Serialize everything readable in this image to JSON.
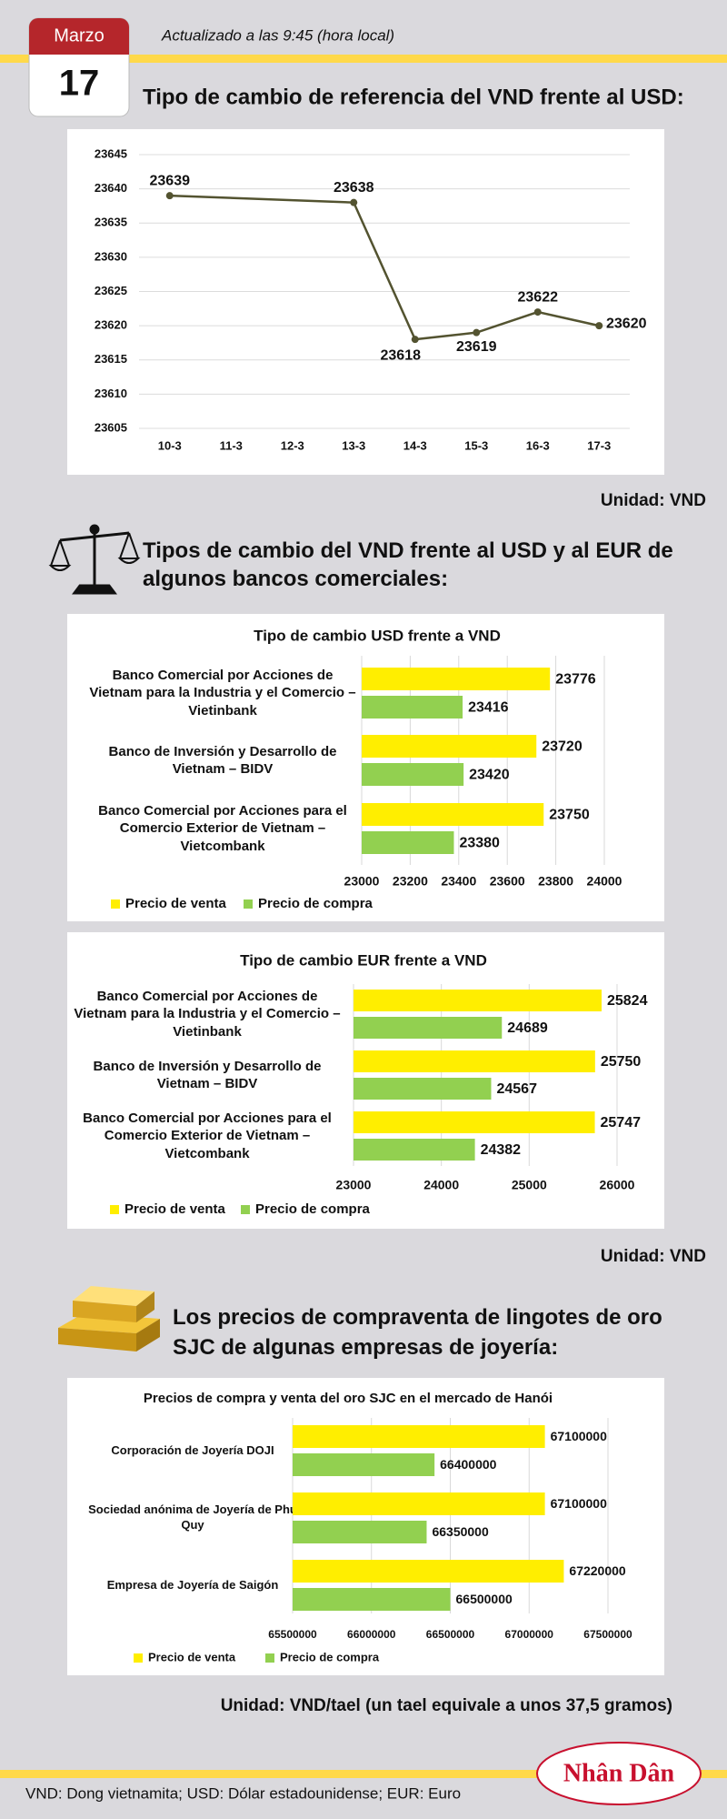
{
  "header": {
    "month": "Marzo",
    "day": "17",
    "updated": "Actualizado a las 9:45 (hora local)"
  },
  "sections": [
    {
      "title": "Tipo de cambio de referencia del VND frente al USD:",
      "unit": "Unidad: VND"
    },
    {
      "title": "Tipos de cambio del VND frente al USD y al EUR de algunos bancos comerciales:",
      "unit": "Unidad: VND"
    },
    {
      "title": "Los precios de compraventa de lingotes de oro SJC de algunas empresas de joyería:",
      "unit": "Unidad: VND/tael (un tael equivale a unos 37,5 gramos)"
    }
  ],
  "footer": "VND: Dong vietnamita; USD: Dólar estadounidense; EUR: Euro",
  "logo": "Nhân Dân",
  "chart_data": [
    {
      "type": "line",
      "categories": [
        "10-3",
        "11-3",
        "12-3",
        "13-3",
        "14-3",
        "15-3",
        "16-3",
        "17-3"
      ],
      "x": [
        "10-3",
        "13-3",
        "14-3",
        "15-3",
        "16-3",
        "17-3"
      ],
      "values": [
        23639,
        23638,
        23618,
        23619,
        23622,
        23620
      ],
      "color": "#535330",
      "ylim": [
        23605,
        23645
      ],
      "yticks": [
        23605,
        23610,
        23615,
        23620,
        23625,
        23630,
        23635,
        23640,
        23645
      ],
      "grid": true
    },
    {
      "type": "bar",
      "orientation": "horizontal",
      "title": "Tipo de cambio USD frente a VND",
      "categories": [
        "Banco Comercial por Acciones de Vietnam para la Industria y el Comercio – Vietinbank",
        "Banco de Inversión y Desarrollo de Vietnam – BIDV",
        "Banco Comercial por Acciones para el Comercio Exterior de Vietnam – Vietcombank"
      ],
      "series": [
        {
          "name": "Precio de venta",
          "color": "#ffee00",
          "values": [
            23776,
            23720,
            23750
          ]
        },
        {
          "name": "Precio de compra",
          "color": "#92d050",
          "values": [
            23416,
            23420,
            23380
          ]
        }
      ],
      "xlim": [
        23000,
        24000
      ],
      "xticks": [
        23000,
        23200,
        23400,
        23600,
        23800,
        24000
      ],
      "grid": true,
      "legend": "bottom-left"
    },
    {
      "type": "bar",
      "orientation": "horizontal",
      "title": "Tipo de cambio EUR frente a VND",
      "categories": [
        "Banco Comercial por Acciones de Vietnam para la Industria y el Comercio – Vietinbank",
        "Banco de Inversión y Desarrollo de Vietnam – BIDV",
        "Banco Comercial por Acciones para el Comercio Exterior de Vietnam – Vietcombank"
      ],
      "series": [
        {
          "name": "Precio de venta",
          "color": "#ffee00",
          "values": [
            25824,
            25750,
            25747
          ]
        },
        {
          "name": "Precio de compra",
          "color": "#92d050",
          "values": [
            24689,
            24567,
            24382
          ]
        }
      ],
      "xlim": [
        23000,
        26000
      ],
      "xticks": [
        23000,
        24000,
        25000,
        26000
      ],
      "grid": true,
      "legend": "bottom-left"
    },
    {
      "type": "bar",
      "orientation": "horizontal",
      "title": "Precios de compra y venta del oro SJC en el mercado de Hanói",
      "categories": [
        "Corporación de Joyería DOJI",
        "Sociedad anónima de Joyería de Phu Quy",
        "Empresa de Joyería de Saigón"
      ],
      "series": [
        {
          "name": "Precio de venta",
          "color": "#ffee00",
          "values": [
            67100000,
            67100000,
            67220000
          ]
        },
        {
          "name": "Precio de compra",
          "color": "#92d050",
          "values": [
            66400000,
            66350000,
            66500000
          ]
        }
      ],
      "xlim": [
        65500000,
        67500000
      ],
      "xticks": [
        65500000,
        66000000,
        66500000,
        67000000,
        67500000
      ],
      "grid": true,
      "legend": "bottom-left"
    }
  ]
}
